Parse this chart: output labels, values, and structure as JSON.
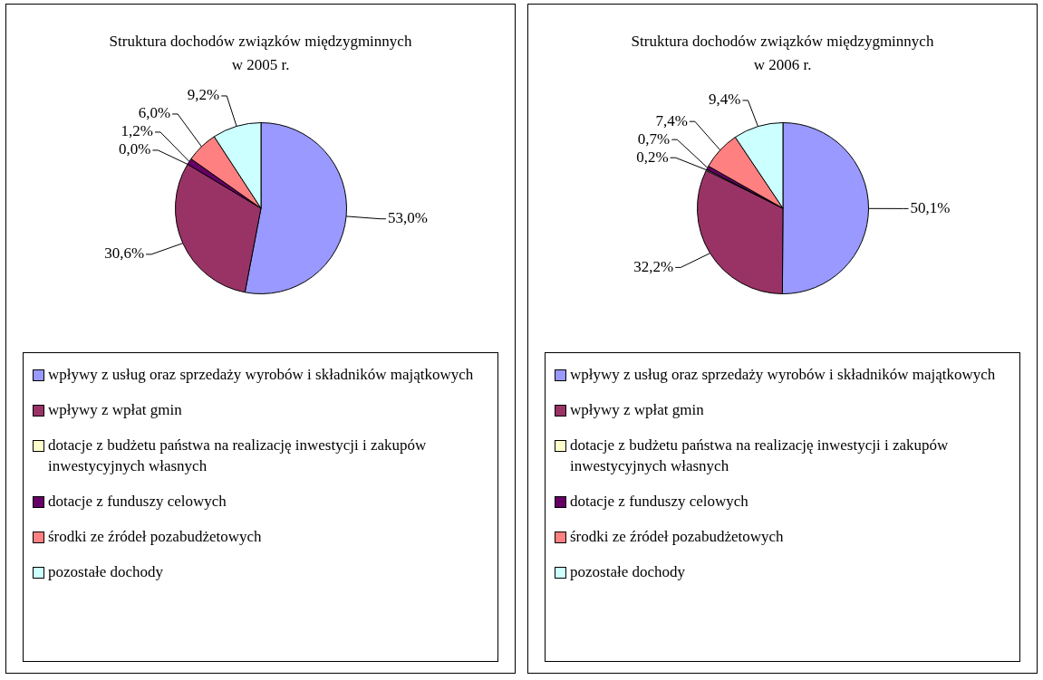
{
  "chart_data": [
    {
      "type": "pie",
      "title": "Struktura dochodów związków międzygminnych\nw 2005 r.",
      "categories": [
        "wpływy z usług oraz sprzedaży wyrobów i składników majątkowych",
        "wpływy z wpłat gmin",
        "dotacje z budżetu państwa na realizację inwestycji i zakupów inwestycyjnych własnych",
        "dotacje z funduszy celowych",
        "środki ze źródeł  pozabudżetowych",
        "pozostałe dochody"
      ],
      "values": [
        53.0,
        30.6,
        0.0,
        1.2,
        6.0,
        9.2
      ],
      "value_labels": [
        "53,0%",
        "30,6%",
        "0,0%",
        "1,2%",
        "6,0%",
        "9,2%"
      ],
      "colors": [
        "#9999ff",
        "#993366",
        "#ffffcc",
        "#660066",
        "#ff8080",
        "#ccffff"
      ],
      "legend": "bottom"
    },
    {
      "type": "pie",
      "title": "Struktura dochodów związków międzygminnych\nw 2006 r.",
      "categories": [
        "wpływy z usług oraz sprzedaży wyrobów i składników majątkowych",
        "wpływy z wpłat gmin",
        "dotacje z budżetu państwa na realizację inwestycji i zakupów inwestycyjnych własnych",
        "dotacje z funduszy celowych",
        "środki ze źródeł  pozabudżetowych",
        "pozostałe dochody"
      ],
      "values": [
        50.1,
        32.2,
        0.2,
        0.7,
        7.4,
        9.4
      ],
      "value_labels": [
        "50,1%",
        "32,2%",
        "0,2%",
        "0,7%",
        "7,4%",
        "9,4%"
      ],
      "colors": [
        "#9999ff",
        "#993366",
        "#ffffcc",
        "#660066",
        "#ff8080",
        "#ccffff"
      ],
      "legend": "bottom"
    }
  ]
}
